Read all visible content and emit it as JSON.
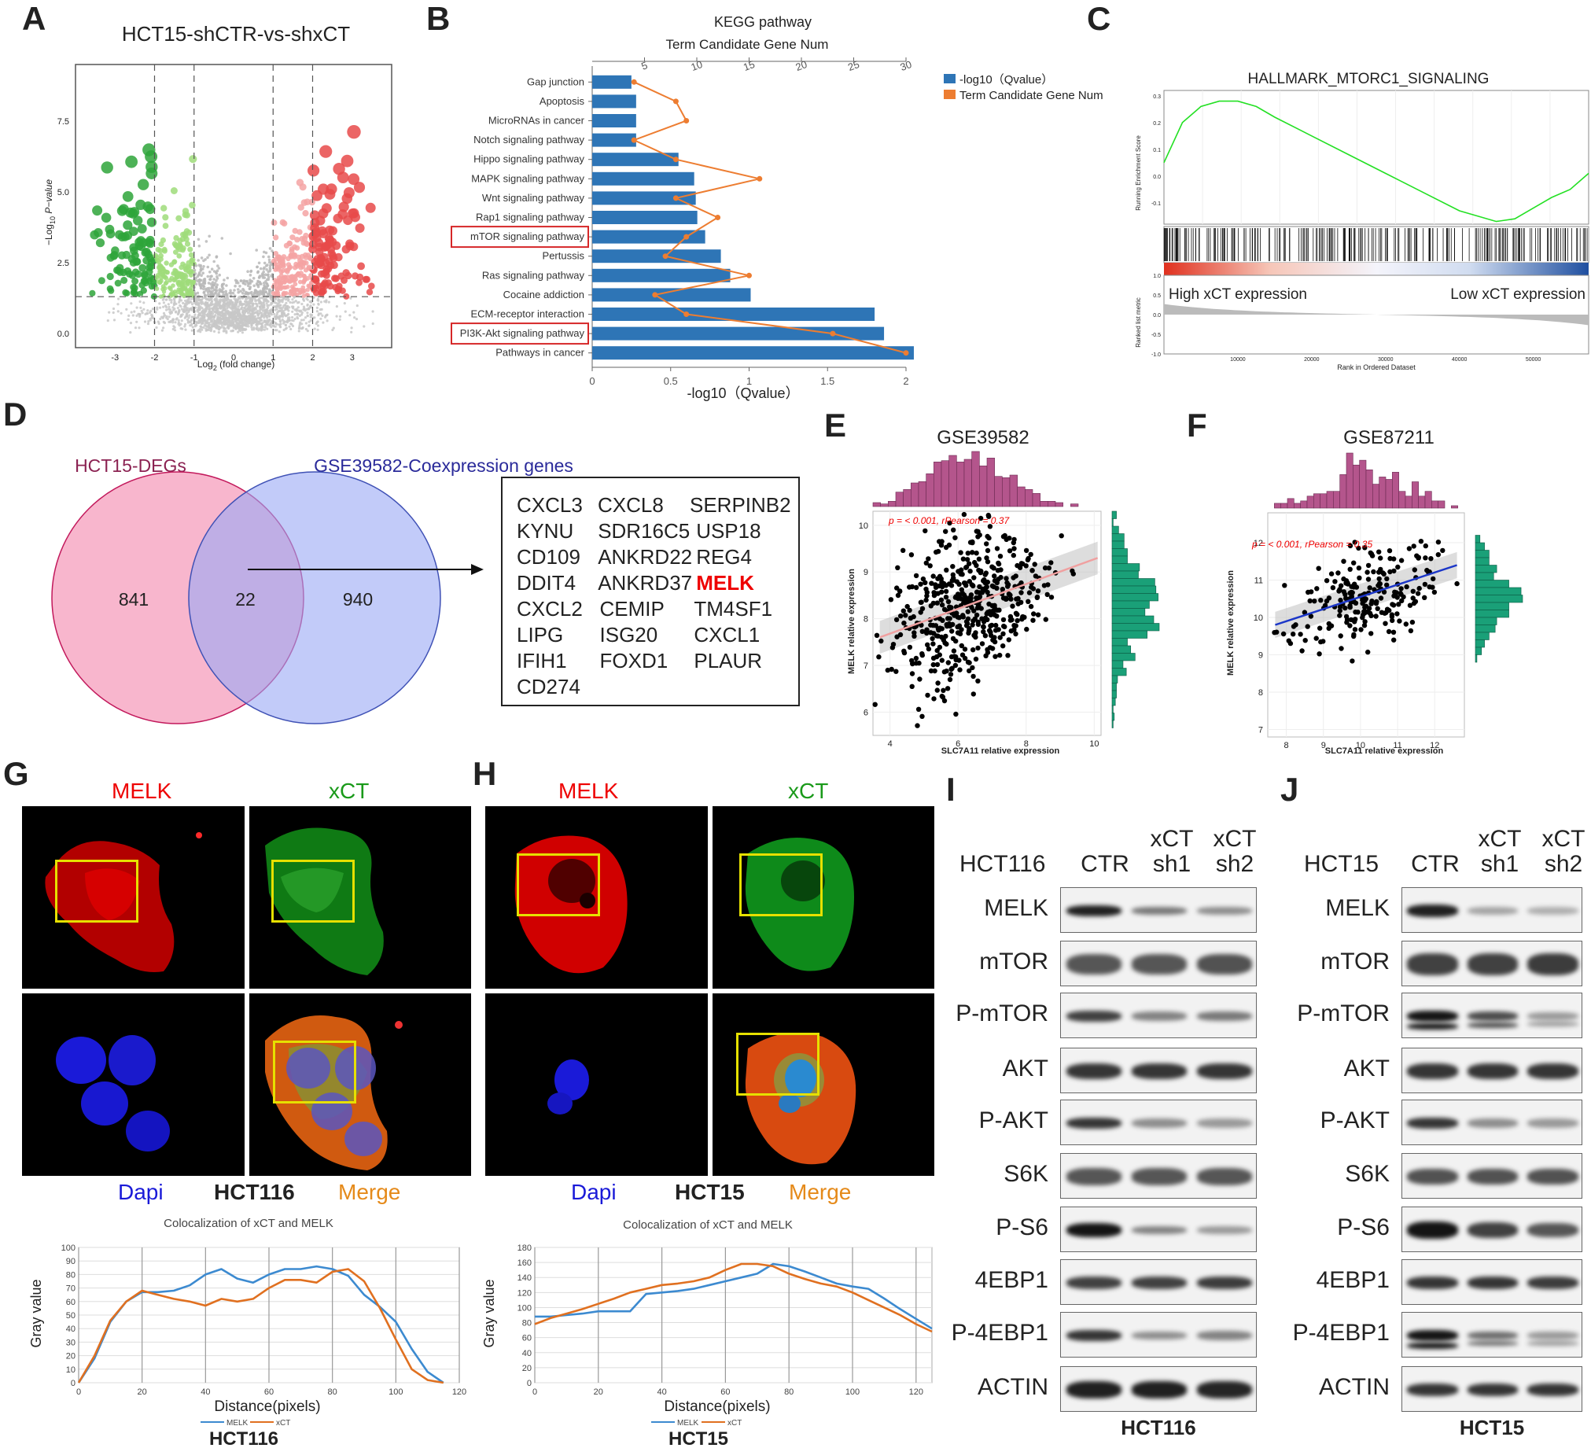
{
  "panel_labels": [
    "A",
    "B",
    "C",
    "D",
    "E",
    "F",
    "G",
    "H",
    "I",
    "J"
  ],
  "panelA": {
    "title": "HCT15-shCTR-vs-shxCT",
    "ylabel_main": "−Log",
    "ylabel_sub": "10",
    "ylabel_tail": " P−value",
    "xlabel_main": "Log",
    "xlabel_sub": "2",
    "xlabel_tail": " (fold change)",
    "yticks": [
      "0.0",
      "2.5",
      "5.0",
      "7.5"
    ],
    "xticks": [
      "-3",
      "-2",
      "-1",
      "0",
      "1",
      "2",
      "3"
    ]
  },
  "panelB": {
    "title": "KEGG pathway",
    "top_axis_title": "Term Candidate Gene Num",
    "bottom_axis_title": "-log10（Qvalue）",
    "legend": [
      "-log10（Qvalue）",
      "Term Candidate Gene Num"
    ],
    "colors": {
      "bar": "#2e75b6",
      "line": "#ed7d31",
      "box": "#d62728"
    }
  },
  "panelC": {
    "title": "HALLMARK_MTORC1_SIGNALING",
    "ylabel_top": "Running Enrichment Score",
    "ylabel_bottom": "Ranked list metric",
    "xlabel": "Rank in Ordered Dataset",
    "high_label": "High xCT expression",
    "low_label": "Low xCT expression",
    "yticks_top": [
      "0.3",
      "0.2",
      "0.1",
      "0.0",
      "-0.1"
    ],
    "yticks_bottom": [
      "1.0",
      "0.5",
      "0.0",
      "-0.5",
      "-1.0"
    ],
    "xticks": [
      "10000",
      "20000",
      "30000",
      "40000",
      "50000"
    ]
  },
  "panelD": {
    "left_title": "HCT15-DEGs",
    "right_title": "GSE39582-Coexpression genes",
    "left_count": "841",
    "overlap_count": "22",
    "right_count": "940",
    "genes": [
      [
        "CXCL3",
        "CXCL8",
        "SERPINB2"
      ],
      [
        "KYNU",
        "SDR16C5",
        "USP18"
      ],
      [
        "CD109",
        "ANKRD22",
        "REG4"
      ],
      [
        "DDIT4",
        "ANKRD37",
        "MELK"
      ],
      [
        "CXCL2",
        "CEMIP",
        "TM4SF1"
      ],
      [
        "LIPG",
        "ISG20",
        "CXCL1"
      ],
      [
        "IFIH1",
        "FOXD1",
        "PLAUR"
      ],
      [
        "CD274"
      ]
    ]
  },
  "panelE": {
    "title": "GSE39582",
    "stat": "p = < 0.001, rPearson = 0.37",
    "xlabel": "SLC7A11 relative expression",
    "ylabel": "MELK relative expression",
    "xticks": [
      "4",
      "6",
      "8",
      "10"
    ],
    "yticks": [
      "6",
      "7",
      "8",
      "9",
      "10"
    ]
  },
  "panelF": {
    "title": "GSE87211",
    "stat": "p = < 0.001, rPearson = 0.35",
    "xlabel": "SLC7A11 relative expression",
    "ylabel": "MELK relative expression",
    "xticks": [
      "8",
      "9",
      "10",
      "11",
      "12"
    ],
    "yticks": [
      "7",
      "8",
      "9",
      "10",
      "11",
      "12"
    ]
  },
  "panelG": {
    "label_melk": "MELK",
    "label_xct": "xCT",
    "label_dapi": "Dapi",
    "label_cell": "HCT116",
    "label_merge": "Merge",
    "coloc_title": "Colocalization of xCT and MELK",
    "ylabel": "Gray value",
    "xlabel": "Distance(pixels)",
    "legend": [
      "MELK",
      "xCT"
    ],
    "bottom_label": "HCT116"
  },
  "panelH": {
    "label_melk": "MELK",
    "label_xct": "xCT",
    "label_dapi": "Dapi",
    "label_cell": "HCT15",
    "label_merge": "Merge",
    "coloc_title": "Colocalization of xCT and MELK",
    "ylabel": "Gray value",
    "xlabel": "Distance(pixels)",
    "legend": [
      "MELK",
      "xCT"
    ],
    "bottom_label": "HCT15"
  },
  "panelI": {
    "cell_line": "HCT116",
    "lanes": [
      "CTR",
      "xCT\nsh1",
      "xCT\nsh2"
    ],
    "lane_top": [
      "",
      "xCT",
      "xCT"
    ],
    "lane_bottom": [
      "CTR",
      "sh1",
      "sh2"
    ],
    "proteins": [
      "MELK",
      "mTOR",
      "P-mTOR",
      "AKT",
      "P-AKT",
      "S6K",
      "P-S6",
      "4EBP1",
      "P-4EBP1",
      "ACTIN"
    ],
    "bottom_label": "HCT116"
  },
  "panelJ": {
    "cell_line": "HCT15",
    "lane_top": [
      "",
      "xCT",
      "xCT"
    ],
    "lane_bottom": [
      "CTR",
      "sh1",
      "sh2"
    ],
    "proteins": [
      "MELK",
      "mTOR",
      "P-mTOR",
      "AKT",
      "P-AKT",
      "S6K",
      "P-S6",
      "4EBP1",
      "P-4EBP1",
      "ACTIN"
    ],
    "bottom_label": "HCT15"
  },
  "chart_data": [
    {
      "type": "scatter",
      "title": "HCT15-shCTR-vs-shxCT",
      "xlabel": "Log2 (fold change)",
      "ylabel": "-Log10 P-value",
      "xlim": [
        -4,
        4
      ],
      "ylim": [
        -0.5,
        9.5
      ],
      "thresholds_x": [
        -2,
        -1,
        1,
        2
      ],
      "threshold_y": 1.3,
      "groups": [
        "down strong (green)",
        "down (light green)",
        "ns (grey)",
        "up (pink)",
        "up strong (red)"
      ]
    },
    {
      "type": "bar",
      "title": "KEGG pathway",
      "categories": [
        "Gap junction",
        "Apoptosis",
        "MicroRNAs in cancer",
        "Notch signaling pathway",
        "Hippo signaling pathway",
        "MAPK signaling pathway",
        "Wnt signaling pathway",
        "Rap1 signaling pathway",
        "mTOR signaling pathway",
        "Pertussis",
        "Ras signaling pathway",
        "Cocaine addiction",
        "ECM-receptor interaction",
        "PI3K-Akt signaling pathway",
        "Pathways in cancer"
      ],
      "highlighted": [
        "mTOR signaling pathway",
        "PI3K-Akt signaling pathway"
      ],
      "series": [
        {
          "name": "-log10（Qvalue）",
          "values": [
            0.25,
            0.28,
            0.28,
            0.28,
            0.55,
            0.65,
            0.66,
            0.67,
            0.72,
            0.82,
            0.88,
            1.01,
            1.8,
            1.86,
            2.05
          ]
        },
        {
          "name": "Term Candidate Gene Num",
          "values": [
            4,
            8,
            9,
            4,
            8,
            16,
            8,
            12,
            9,
            7,
            15,
            6,
            9,
            23,
            30
          ]
        }
      ],
      "xlim_bottom": [
        0,
        2
      ],
      "xlim_top": [
        0,
        30
      ],
      "xticks_bottom": [
        "0",
        "0.5",
        "1",
        "1.5",
        "2"
      ],
      "xticks_top": [
        "5",
        "10",
        "15",
        "20",
        "25",
        "30"
      ]
    },
    {
      "type": "line",
      "title": "HALLMARK_MTORC1_SIGNALING",
      "xlabel": "Rank in Ordered Dataset",
      "ylabel": "Running Enrichment Score",
      "x": [
        0,
        2500,
        5000,
        7500,
        10000,
        12500,
        15000,
        20000,
        25000,
        30000,
        35000,
        40000,
        45000,
        47500,
        50000,
        52500,
        55000,
        57500
      ],
      "values": [
        0.05,
        0.2,
        0.26,
        0.28,
        0.28,
        0.26,
        0.22,
        0.15,
        0.08,
        0.01,
        -0.06,
        -0.13,
        -0.17,
        -0.16,
        -0.12,
        -0.08,
        -0.05,
        0.01
      ]
    },
    {
      "type": "scatter",
      "title": "GSE39582",
      "xlabel": "SLC7A11 relative expression",
      "ylabel": "MELK relative expression",
      "xlim": [
        3.5,
        10.2
      ],
      "ylim": [
        5.5,
        10.3
      ],
      "fit": {
        "x": [
          3.7,
          10.1
        ],
        "y": [
          7.6,
          9.3
        ]
      }
    },
    {
      "type": "scatter",
      "title": "GSE87211",
      "xlabel": "SLC7A11 relative expression",
      "ylabel": "MELK relative expression",
      "xlim": [
        7.5,
        12.8
      ],
      "ylim": [
        6.8,
        12.8
      ],
      "fit": {
        "x": [
          7.7,
          12.6
        ],
        "y": [
          9.8,
          11.4
        ]
      }
    },
    {
      "type": "line",
      "title": "Colocalization of xCT and MELK (HCT116)",
      "xlabel": "Distance(pixels)",
      "ylabel": "Gray value",
      "xlim": [
        0,
        120
      ],
      "ylim": [
        0,
        100
      ],
      "x": [
        0,
        5,
        10,
        15,
        20,
        25,
        30,
        35,
        40,
        45,
        50,
        55,
        60,
        65,
        70,
        75,
        80,
        85,
        90,
        95,
        100,
        105,
        110,
        115
      ],
      "series": [
        {
          "name": "MELK",
          "values": [
            0,
            18,
            45,
            60,
            67,
            67,
            68,
            72,
            80,
            84,
            77,
            74,
            80,
            84,
            84,
            86,
            84,
            79,
            65,
            56,
            45,
            25,
            8,
            0
          ]
        },
        {
          "name": "xCT",
          "values": [
            0,
            20,
            46,
            60,
            68,
            65,
            62,
            60,
            57,
            62,
            60,
            62,
            70,
            76,
            76,
            74,
            82,
            84,
            75,
            55,
            32,
            10,
            2,
            0
          ]
        }
      ]
    },
    {
      "type": "line",
      "title": "Colocalization of xCT and MELK (HCT15)",
      "xlabel": "Distance(pixels)",
      "ylabel": "Gray value",
      "xlim": [
        0,
        125
      ],
      "ylim": [
        0,
        180
      ],
      "x": [
        0,
        5,
        10,
        15,
        20,
        25,
        30,
        35,
        40,
        45,
        50,
        55,
        60,
        65,
        70,
        75,
        80,
        85,
        90,
        95,
        100,
        105,
        110,
        115,
        120,
        125
      ],
      "series": [
        {
          "name": "MELK",
          "values": [
            88,
            88,
            90,
            92,
            95,
            95,
            95,
            118,
            120,
            122,
            125,
            130,
            135,
            140,
            145,
            158,
            155,
            148,
            140,
            132,
            128,
            125,
            112,
            98,
            85,
            72
          ]
        },
        {
          "name": "xCT",
          "values": [
            78,
            86,
            92,
            98,
            105,
            112,
            120,
            125,
            130,
            132,
            135,
            140,
            150,
            158,
            158,
            155,
            145,
            138,
            132,
            128,
            120,
            110,
            100,
            90,
            78,
            68
          ]
        }
      ]
    }
  ]
}
